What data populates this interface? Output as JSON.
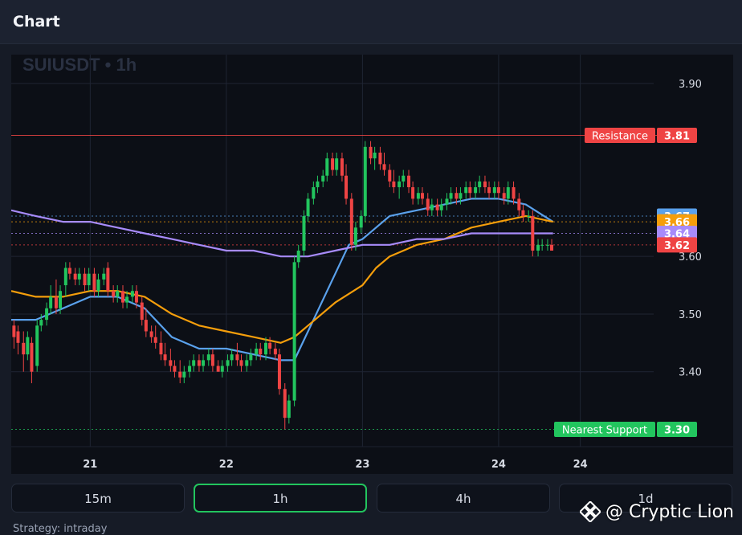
{
  "header": {
    "title": "Chart"
  },
  "chart_data": {
    "type": "candlestick",
    "symbol_label": "SUIUSDT • 1h",
    "ylim": [
      3.27,
      3.95
    ],
    "y_ticks": [
      3.4,
      3.5,
      3.6,
      3.9
    ],
    "x_ticks": [
      {
        "label": "21",
        "t": 21.0
      },
      {
        "label": "22",
        "t": 22.0
      },
      {
        "label": "23",
        "t": 23.0
      },
      {
        "label": "24",
        "t": 24.0
      },
      {
        "label": "24",
        "t": 24.6
      }
    ],
    "xlim": [
      20.42,
      25.08
    ],
    "grid": true,
    "candles": [
      [
        20.44,
        3.48,
        3.49,
        3.44,
        3.46
      ],
      [
        20.47,
        3.47,
        3.48,
        3.43,
        3.45
      ],
      [
        20.51,
        3.45,
        3.47,
        3.4,
        3.43
      ],
      [
        20.54,
        3.43,
        3.47,
        3.42,
        3.46
      ],
      [
        20.57,
        3.45,
        3.46,
        3.38,
        3.4
      ],
      [
        20.61,
        3.41,
        3.49,
        3.4,
        3.48
      ],
      [
        20.64,
        3.48,
        3.5,
        3.47,
        3.49
      ],
      [
        20.68,
        3.49,
        3.52,
        3.48,
        3.51
      ],
      [
        20.71,
        3.51,
        3.55,
        3.5,
        3.53
      ],
      [
        20.75,
        3.53,
        3.56,
        3.5,
        3.51
      ],
      [
        20.78,
        3.51,
        3.55,
        3.5,
        3.54
      ],
      [
        20.82,
        3.55,
        3.59,
        3.53,
        3.58
      ],
      [
        20.85,
        3.58,
        3.59,
        3.56,
        3.57
      ],
      [
        20.89,
        3.57,
        3.58,
        3.55,
        3.56
      ],
      [
        20.92,
        3.56,
        3.58,
        3.55,
        3.57
      ],
      [
        20.96,
        3.57,
        3.58,
        3.54,
        3.55
      ],
      [
        20.99,
        3.55,
        3.58,
        3.54,
        3.57
      ],
      [
        21.03,
        3.57,
        3.58,
        3.53,
        3.54
      ],
      [
        21.06,
        3.54,
        3.57,
        3.53,
        3.56
      ],
      [
        21.1,
        3.56,
        3.58,
        3.55,
        3.57
      ],
      [
        21.13,
        3.58,
        3.59,
        3.53,
        3.54
      ],
      [
        21.17,
        3.54,
        3.55,
        3.52,
        3.53
      ],
      [
        21.2,
        3.53,
        3.55,
        3.52,
        3.54
      ],
      [
        21.24,
        3.54,
        3.55,
        3.51,
        3.52
      ],
      [
        21.27,
        3.52,
        3.54,
        3.51,
        3.53
      ],
      [
        21.31,
        3.53,
        3.55,
        3.52,
        3.54
      ],
      [
        21.34,
        3.54,
        3.55,
        3.51,
        3.52
      ],
      [
        21.38,
        3.52,
        3.53,
        3.48,
        3.49
      ],
      [
        21.41,
        3.49,
        3.51,
        3.46,
        3.47
      ],
      [
        21.45,
        3.47,
        3.48,
        3.45,
        3.46
      ],
      [
        21.48,
        3.46,
        3.48,
        3.44,
        3.45
      ],
      [
        21.52,
        3.45,
        3.47,
        3.42,
        3.43
      ],
      [
        21.55,
        3.43,
        3.45,
        3.41,
        3.42
      ],
      [
        21.59,
        3.42,
        3.44,
        3.4,
        3.41
      ],
      [
        21.62,
        3.41,
        3.42,
        3.39,
        3.4
      ],
      [
        21.66,
        3.4,
        3.42,
        3.38,
        3.39
      ],
      [
        21.69,
        3.39,
        3.41,
        3.38,
        3.4
      ],
      [
        21.73,
        3.4,
        3.42,
        3.39,
        3.41
      ],
      [
        21.76,
        3.41,
        3.43,
        3.4,
        3.42
      ],
      [
        21.8,
        3.42,
        3.43,
        3.4,
        3.41
      ],
      [
        21.83,
        3.41,
        3.43,
        3.4,
        3.42
      ],
      [
        21.87,
        3.42,
        3.44,
        3.41,
        3.43
      ],
      [
        21.9,
        3.43,
        3.44,
        3.4,
        3.41
      ],
      [
        21.94,
        3.41,
        3.42,
        3.4,
        3.4
      ],
      [
        21.97,
        3.4,
        3.42,
        3.39,
        3.41
      ],
      [
        22.01,
        3.41,
        3.43,
        3.4,
        3.42
      ],
      [
        22.04,
        3.42,
        3.44,
        3.41,
        3.43
      ],
      [
        22.08,
        3.43,
        3.45,
        3.41,
        3.42
      ],
      [
        22.11,
        3.42,
        3.43,
        3.4,
        3.41
      ],
      [
        22.15,
        3.41,
        3.43,
        3.4,
        3.42
      ],
      [
        22.18,
        3.42,
        3.44,
        3.41,
        3.43
      ],
      [
        22.22,
        3.43,
        3.45,
        3.42,
        3.44
      ],
      [
        22.25,
        3.44,
        3.45,
        3.42,
        3.43
      ],
      [
        22.29,
        3.43,
        3.46,
        3.42,
        3.45
      ],
      [
        22.32,
        3.45,
        3.46,
        3.43,
        3.44
      ],
      [
        22.36,
        3.44,
        3.45,
        3.42,
        3.43
      ],
      [
        22.39,
        3.43,
        3.44,
        3.36,
        3.37
      ],
      [
        22.43,
        3.37,
        3.38,
        3.3,
        3.32
      ],
      [
        22.46,
        3.32,
        3.36,
        3.31,
        3.35
      ],
      [
        22.5,
        3.35,
        3.6,
        3.34,
        3.59
      ],
      [
        22.53,
        3.59,
        3.62,
        3.58,
        3.61
      ],
      [
        22.57,
        3.61,
        3.68,
        3.6,
        3.67
      ],
      [
        22.6,
        3.67,
        3.71,
        3.66,
        3.7
      ],
      [
        22.64,
        3.7,
        3.73,
        3.69,
        3.72
      ],
      [
        22.67,
        3.72,
        3.74,
        3.71,
        3.73
      ],
      [
        22.71,
        3.73,
        3.75,
        3.72,
        3.74
      ],
      [
        22.74,
        3.74,
        3.78,
        3.73,
        3.77
      ],
      [
        22.78,
        3.77,
        3.78,
        3.74,
        3.75
      ],
      [
        22.81,
        3.75,
        3.78,
        3.74,
        3.77
      ],
      [
        22.85,
        3.77,
        3.78,
        3.73,
        3.74
      ],
      [
        22.88,
        3.74,
        3.76,
        3.69,
        3.7
      ],
      [
        22.92,
        3.7,
        3.71,
        3.61,
        3.62
      ],
      [
        22.95,
        3.62,
        3.66,
        3.61,
        3.65
      ],
      [
        22.99,
        3.65,
        3.68,
        3.64,
        3.67
      ],
      [
        23.02,
        3.67,
        3.8,
        3.66,
        3.79
      ],
      [
        23.06,
        3.79,
        3.8,
        3.76,
        3.77
      ],
      [
        23.09,
        3.77,
        3.79,
        3.75,
        3.78
      ],
      [
        23.13,
        3.78,
        3.79,
        3.75,
        3.76
      ],
      [
        23.16,
        3.76,
        3.78,
        3.74,
        3.75
      ],
      [
        23.2,
        3.75,
        3.76,
        3.72,
        3.73
      ],
      [
        23.23,
        3.73,
        3.75,
        3.71,
        3.72
      ],
      [
        23.27,
        3.72,
        3.74,
        3.7,
        3.73
      ],
      [
        23.3,
        3.73,
        3.75,
        3.72,
        3.74
      ],
      [
        23.34,
        3.74,
        3.75,
        3.71,
        3.72
      ],
      [
        23.37,
        3.72,
        3.73,
        3.69,
        3.7
      ],
      [
        23.41,
        3.7,
        3.72,
        3.69,
        3.71
      ],
      [
        23.44,
        3.71,
        3.72,
        3.69,
        3.7
      ],
      [
        23.48,
        3.7,
        3.71,
        3.67,
        3.68
      ],
      [
        23.51,
        3.68,
        3.7,
        3.67,
        3.69
      ],
      [
        23.55,
        3.69,
        3.7,
        3.67,
        3.68
      ],
      [
        23.58,
        3.68,
        3.7,
        3.67,
        3.69
      ],
      [
        23.62,
        3.69,
        3.71,
        3.68,
        3.7
      ],
      [
        23.65,
        3.7,
        3.72,
        3.69,
        3.71
      ],
      [
        23.69,
        3.71,
        3.72,
        3.69,
        3.7
      ],
      [
        23.72,
        3.7,
        3.72,
        3.69,
        3.71
      ],
      [
        23.76,
        3.71,
        3.73,
        3.7,
        3.72
      ],
      [
        23.79,
        3.72,
        3.73,
        3.7,
        3.71
      ],
      [
        23.83,
        3.71,
        3.73,
        3.7,
        3.72
      ],
      [
        23.86,
        3.72,
        3.74,
        3.71,
        3.73
      ],
      [
        23.9,
        3.73,
        3.74,
        3.71,
        3.72
      ],
      [
        23.93,
        3.72,
        3.73,
        3.7,
        3.71
      ],
      [
        23.97,
        3.71,
        3.73,
        3.7,
        3.72
      ],
      [
        24.0,
        3.72,
        3.73,
        3.7,
        3.71
      ],
      [
        24.04,
        3.71,
        3.72,
        3.69,
        3.7
      ],
      [
        24.07,
        3.7,
        3.73,
        3.69,
        3.72
      ],
      [
        24.11,
        3.72,
        3.73,
        3.69,
        3.7
      ],
      [
        24.15,
        3.7,
        3.71,
        3.67,
        3.68
      ],
      [
        24.18,
        3.68,
        3.69,
        3.66,
        3.67
      ],
      [
        24.22,
        3.67,
        3.68,
        3.66,
        3.67
      ],
      [
        24.25,
        3.67,
        3.68,
        3.6,
        3.61
      ],
      [
        24.29,
        3.61,
        3.63,
        3.6,
        3.62
      ],
      [
        24.32,
        3.62,
        3.63,
        3.61,
        3.62
      ],
      [
        24.36,
        3.62,
        3.63,
        3.61,
        3.62
      ],
      [
        24.39,
        3.62,
        3.63,
        3.61,
        3.61
      ]
    ],
    "moving_averages": [
      {
        "color": "#5aa1ec",
        "points": [
          [
            20.42,
            3.49
          ],
          [
            20.6,
            3.49
          ],
          [
            20.8,
            3.51
          ],
          [
            21.0,
            3.53
          ],
          [
            21.2,
            3.53
          ],
          [
            21.4,
            3.51
          ],
          [
            21.6,
            3.46
          ],
          [
            21.8,
            3.44
          ],
          [
            22.0,
            3.44
          ],
          [
            22.2,
            3.43
          ],
          [
            22.4,
            3.42
          ],
          [
            22.5,
            3.42
          ],
          [
            22.6,
            3.47
          ],
          [
            22.8,
            3.57
          ],
          [
            22.9,
            3.62
          ],
          [
            23.0,
            3.63
          ],
          [
            23.1,
            3.65
          ],
          [
            23.2,
            3.67
          ],
          [
            23.4,
            3.68
          ],
          [
            23.6,
            3.69
          ],
          [
            23.8,
            3.7
          ],
          [
            24.0,
            3.7
          ],
          [
            24.2,
            3.69
          ],
          [
            24.4,
            3.66
          ]
        ]
      },
      {
        "color": "#f59e0b",
        "points": [
          [
            20.42,
            3.54
          ],
          [
            20.6,
            3.53
          ],
          [
            20.8,
            3.53
          ],
          [
            21.0,
            3.54
          ],
          [
            21.2,
            3.54
          ],
          [
            21.4,
            3.53
          ],
          [
            21.6,
            3.5
          ],
          [
            21.8,
            3.48
          ],
          [
            22.0,
            3.47
          ],
          [
            22.2,
            3.46
          ],
          [
            22.4,
            3.45
          ],
          [
            22.5,
            3.46
          ],
          [
            22.6,
            3.48
          ],
          [
            22.8,
            3.52
          ],
          [
            23.0,
            3.55
          ],
          [
            23.1,
            3.58
          ],
          [
            23.2,
            3.6
          ],
          [
            23.4,
            3.62
          ],
          [
            23.6,
            3.63
          ],
          [
            23.8,
            3.65
          ],
          [
            24.0,
            3.66
          ],
          [
            24.2,
            3.67
          ],
          [
            24.4,
            3.66
          ]
        ]
      },
      {
        "color": "#a78bfa",
        "points": [
          [
            20.42,
            3.68
          ],
          [
            20.6,
            3.67
          ],
          [
            20.8,
            3.66
          ],
          [
            21.0,
            3.66
          ],
          [
            21.2,
            3.65
          ],
          [
            21.4,
            3.64
          ],
          [
            21.6,
            3.63
          ],
          [
            21.8,
            3.62
          ],
          [
            22.0,
            3.61
          ],
          [
            22.2,
            3.61
          ],
          [
            22.4,
            3.6
          ],
          [
            22.6,
            3.6
          ],
          [
            22.8,
            3.61
          ],
          [
            23.0,
            3.62
          ],
          [
            23.2,
            3.62
          ],
          [
            23.4,
            3.63
          ],
          [
            23.6,
            3.63
          ],
          [
            23.8,
            3.64
          ],
          [
            24.0,
            3.64
          ],
          [
            24.2,
            3.64
          ],
          [
            24.4,
            3.64
          ]
        ]
      }
    ],
    "levels": [
      {
        "name": "Resistance",
        "value": 3.81,
        "value_label": "3.81",
        "color": "#ef4444",
        "line": "solid"
      },
      {
        "name": "",
        "value": 3.67,
        "value_label": "3.67",
        "color": "#5aa1ec",
        "line": "dotted"
      },
      {
        "name": "",
        "value": 3.66,
        "value_label": "3.66",
        "color": "#f59e0b",
        "line": "dotted"
      },
      {
        "name": "",
        "value": 3.64,
        "value_label": "3.64",
        "color": "#a78bfa",
        "line": "dotted"
      },
      {
        "name": "",
        "value": 3.62,
        "value_label": "3.62",
        "color": "#ef4444",
        "line": "dotted"
      },
      {
        "name": "Nearest Support",
        "value": 3.3,
        "value_label": "3.30",
        "color": "#22c55e",
        "line": "dotted"
      }
    ],
    "colors": {
      "up": "#22c55e",
      "down": "#ef4444",
      "grid": "#1f2533",
      "axis_text": "#d6dae3"
    }
  },
  "timeframes": [
    {
      "label": "15m",
      "active": false
    },
    {
      "label": "1h",
      "active": true
    },
    {
      "label": "4h",
      "active": false
    },
    {
      "label": "1d",
      "active": false
    }
  ],
  "footer": {
    "strategy": "Strategy: intraday"
  },
  "watermark": {
    "text": "@ Cryptic Lion",
    "icon": "diamond-logo-icon"
  }
}
